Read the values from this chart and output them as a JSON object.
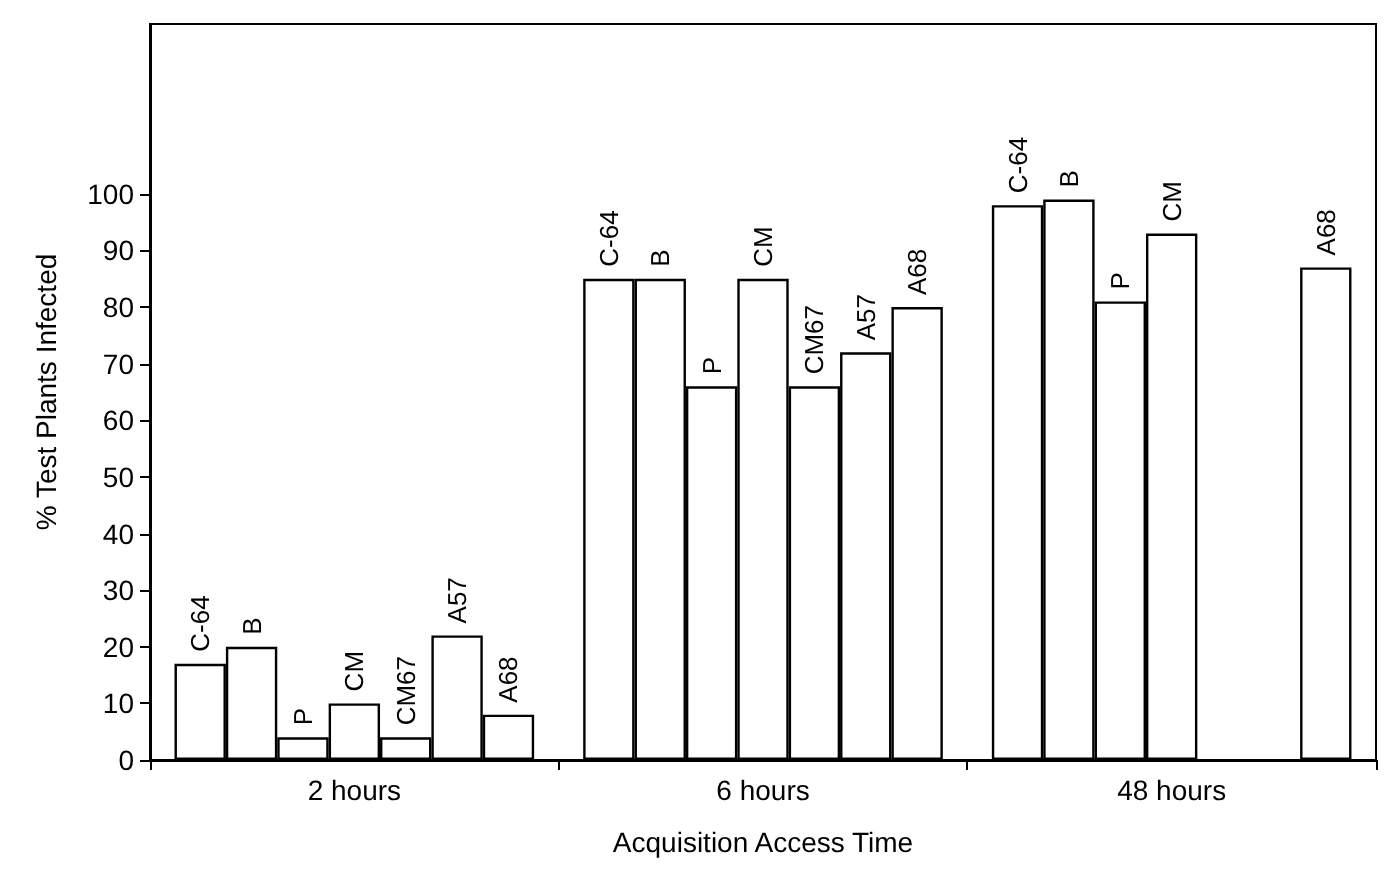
{
  "chart_data": {
    "type": "bar",
    "xlabel": "Acquisition Access Time",
    "ylabel": "% Test Plants Infected",
    "categories": [
      "2 hours",
      "6 hours",
      "48 hours"
    ],
    "series": [
      {
        "name": "C-64",
        "color": "#ffffff",
        "values": [
          17,
          85,
          98
        ]
      },
      {
        "name": "B",
        "color": "#ffffff",
        "values": [
          20,
          85,
          99
        ]
      },
      {
        "name": "P",
        "color": "#ffffff",
        "values": [
          4,
          66,
          81
        ]
      },
      {
        "name": "CM",
        "color": "#ffffff",
        "values": [
          10,
          85,
          93
        ]
      },
      {
        "name": "CM67",
        "color": "#ffffff",
        "values": [
          4,
          66,
          null
        ]
      },
      {
        "name": "A57",
        "color": "#ffffff",
        "values": [
          22,
          72,
          null
        ]
      },
      {
        "name": "A68",
        "color": "#ffffff",
        "values": [
          8,
          80,
          87
        ]
      }
    ],
    "ylim": [
      0,
      130
    ],
    "yticks": [
      0,
      10,
      20,
      30,
      40,
      50,
      60,
      70,
      80,
      90,
      100
    ],
    "grid": false,
    "legend": false
  }
}
